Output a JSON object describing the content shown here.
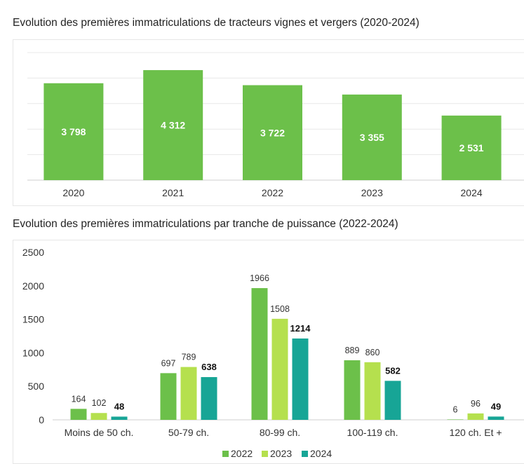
{
  "chart_data": [
    {
      "type": "bar",
      "title": "Evolution des premières immatriculations de tracteurs vignes et vergers (2020-2024)",
      "categories": [
        "2020",
        "2021",
        "2022",
        "2023",
        "2024"
      ],
      "values": [
        3798,
        4312,
        3722,
        3355,
        2531
      ],
      "value_labels": [
        "3 798",
        "4 312",
        "3 722",
        "3 355",
        "2 531"
      ],
      "ylim": [
        0,
        5000
      ],
      "grid": true,
      "color": "#6cc04a"
    },
    {
      "type": "bar",
      "title": "Evolution des premières immatriculations par tranche de puissance (2022-2024)",
      "categories": [
        "Moins de 50 ch.",
        "50-79 ch.",
        "80-99 ch.",
        "100-119 ch.",
        "120 ch. Et +"
      ],
      "series": [
        {
          "name": "2022",
          "values": [
            164,
            697,
            1966,
            889,
            6
          ],
          "color": "#6cc04a"
        },
        {
          "name": "2023",
          "values": [
            102,
            789,
            1508,
            860,
            96
          ],
          "color": "#b5e04e"
        },
        {
          "name": "2024",
          "values": [
            48,
            638,
            1214,
            582,
            49
          ],
          "color": "#17a596"
        }
      ],
      "ylim": [
        0,
        2500
      ],
      "yticks": [
        0,
        500,
        1000,
        1500,
        2000,
        2500
      ],
      "legend": "bottom",
      "grid": false
    }
  ]
}
